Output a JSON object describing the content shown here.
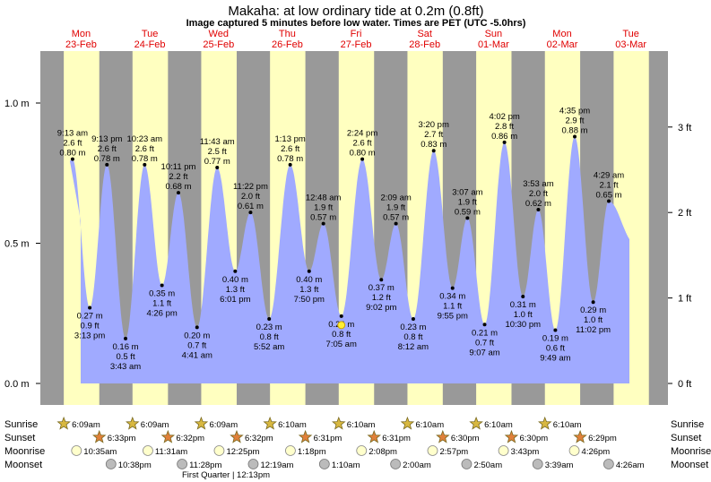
{
  "chart_data": {
    "type": "area",
    "title": "Makaha: at low  ordinary tide at 0.2m (0.8ft)",
    "subtitle": "Image captured 5 minutes before low water. Times are PET (UTC -5.0hrs)",
    "ylabel_left_ticks": [
      "1.0 m",
      "0.5 m",
      "0.0 m"
    ],
    "ylabel_right_ticks": [
      "3 ft",
      "2 ft",
      "1 ft",
      "0 ft"
    ],
    "ylim": [
      -0.01,
      1.18
    ],
    "days": [
      {
        "dow": "Mon",
        "date": "23-Feb"
      },
      {
        "dow": "Tue",
        "date": "24-Feb"
      },
      {
        "dow": "Wed",
        "date": "25-Feb"
      },
      {
        "dow": "Thu",
        "date": "26-Feb"
      },
      {
        "dow": "Fri",
        "date": "27-Feb"
      },
      {
        "dow": "Sat",
        "date": "28-Feb"
      },
      {
        "dow": "Sun",
        "date": "01-Mar"
      },
      {
        "dow": "Mon",
        "date": "02-Mar"
      },
      {
        "dow": "Tue",
        "date": "03-Mar"
      }
    ],
    "tides": [
      {
        "time": "9:13 am",
        "ft": "2.6 ft",
        "m": "0.80 m",
        "height": 0.8,
        "type": "high"
      },
      {
        "time": "3:13 pm",
        "ft": "0.9 ft",
        "m": "0.27 m",
        "height": 0.27,
        "type": "low"
      },
      {
        "time": "9:13 pm",
        "ft": "2.6 ft",
        "m": "0.78 m",
        "height": 0.78,
        "type": "high"
      },
      {
        "time": "3:43 am",
        "ft": "0.5 ft",
        "m": "0.16 m",
        "height": 0.16,
        "type": "low"
      },
      {
        "time": "10:23 am",
        "ft": "2.6 ft",
        "m": "0.78 m",
        "height": 0.78,
        "type": "high"
      },
      {
        "time": "4:26 pm",
        "ft": "1.1 ft",
        "m": "0.35 m",
        "height": 0.35,
        "type": "low"
      },
      {
        "time": "10:11 pm",
        "ft": "2.2 ft",
        "m": "0.68 m",
        "height": 0.68,
        "type": "high"
      },
      {
        "time": "4:41 am",
        "ft": "0.7 ft",
        "m": "0.20 m",
        "height": 0.2,
        "type": "low"
      },
      {
        "time": "11:43 am",
        "ft": "2.5 ft",
        "m": "0.77 m",
        "height": 0.77,
        "type": "high"
      },
      {
        "time": "6:01 pm",
        "ft": "1.3 ft",
        "m": "0.40 m",
        "height": 0.4,
        "type": "low"
      },
      {
        "time": "11:22 pm",
        "ft": "2.0 ft",
        "m": "0.61 m",
        "height": 0.61,
        "type": "high"
      },
      {
        "time": "5:52 am",
        "ft": "0.8 ft",
        "m": "0.23 m",
        "height": 0.23,
        "type": "low"
      },
      {
        "time": "1:13 pm",
        "ft": "2.6 ft",
        "m": "0.78 m",
        "height": 0.78,
        "type": "high"
      },
      {
        "time": "7:50 pm",
        "ft": "1.3 ft",
        "m": "0.40 m",
        "height": 0.4,
        "type": "low"
      },
      {
        "time": "12:48 am",
        "ft": "1.9 ft",
        "m": "0.57 m",
        "height": 0.57,
        "type": "high"
      },
      {
        "time": "7:05 am",
        "ft": "0.8 ft",
        "m": "0.24 m",
        "height": 0.24,
        "type": "low"
      },
      {
        "time": "2:24 pm",
        "ft": "2.6 ft",
        "m": "0.80 m",
        "height": 0.8,
        "type": "high"
      },
      {
        "time": "9:02 pm",
        "ft": "1.2 ft",
        "m": "0.37 m",
        "height": 0.37,
        "type": "low"
      },
      {
        "time": "2:09 am",
        "ft": "1.9 ft",
        "m": "0.57 m",
        "height": 0.57,
        "type": "high"
      },
      {
        "time": "8:12 am",
        "ft": "0.8 ft",
        "m": "0.23 m",
        "height": 0.23,
        "type": "low"
      },
      {
        "time": "3:20 pm",
        "ft": "2.7 ft",
        "m": "0.83 m",
        "height": 0.83,
        "type": "high"
      },
      {
        "time": "9:55 pm",
        "ft": "1.1 ft",
        "m": "0.34 m",
        "height": 0.34,
        "type": "low"
      },
      {
        "time": "3:07 am",
        "ft": "1.9 ft",
        "m": "0.59 m",
        "height": 0.59,
        "type": "high"
      },
      {
        "time": "9:07 am",
        "ft": "0.7 ft",
        "m": "0.21 m",
        "height": 0.21,
        "type": "low"
      },
      {
        "time": "4:02 pm",
        "ft": "2.8 ft",
        "m": "0.86 m",
        "height": 0.86,
        "type": "high"
      },
      {
        "time": "10:30 pm",
        "ft": "1.0 ft",
        "m": "0.31 m",
        "height": 0.31,
        "type": "low"
      },
      {
        "time": "3:53 am",
        "ft": "2.0 ft",
        "m": "0.62 m",
        "height": 0.62,
        "type": "high"
      },
      {
        "time": "9:49 am",
        "ft": "0.6 ft",
        "m": "0.19 m",
        "height": 0.19,
        "type": "low"
      },
      {
        "time": "4:35 pm",
        "ft": "2.9 ft",
        "m": "0.88 m",
        "height": 0.88,
        "type": "high"
      },
      {
        "time": "11:02 pm",
        "ft": "1.0 ft",
        "m": "0.29 m",
        "height": 0.29,
        "type": "low"
      },
      {
        "time": "4:29 am",
        "ft": "2.1 ft",
        "m": "0.65 m",
        "height": 0.65,
        "type": "high"
      }
    ],
    "rows": {
      "sunrise_label": "Sunrise",
      "sunset_label": "Sunset",
      "moonrise_label": "Moonrise",
      "moonset_label": "Moonset",
      "sunrise": [
        "6:09am",
        "6:09am",
        "6:09am",
        "6:10am",
        "6:10am",
        "6:10am",
        "6:10am",
        "6:10am"
      ],
      "sunset": [
        "6:33pm",
        "6:32pm",
        "6:32pm",
        "6:31pm",
        "6:31pm",
        "6:30pm",
        "6:30pm",
        "6:29pm"
      ],
      "moonrise": [
        "10:35am",
        "11:31am",
        "12:25pm",
        "1:18pm",
        "2:08pm",
        "2:57pm",
        "3:43pm",
        "4:26pm"
      ],
      "moonset": [
        "10:38pm",
        "11:28pm",
        "12:19am",
        "1:10am",
        "2:00am",
        "2:50am",
        "3:39am",
        "4:26am"
      ]
    },
    "phase_note": "First Quarter | 12:13pm",
    "colors": {
      "night": "#999999",
      "day": "#ffffc0",
      "water": "#a0aaff",
      "day_label": "#e00000",
      "sun": "#d8b840",
      "sunset_fill": "#e0803a",
      "moonrise_fill": "#ffffcc",
      "moonset_fill": "#bbbbbb"
    }
  }
}
